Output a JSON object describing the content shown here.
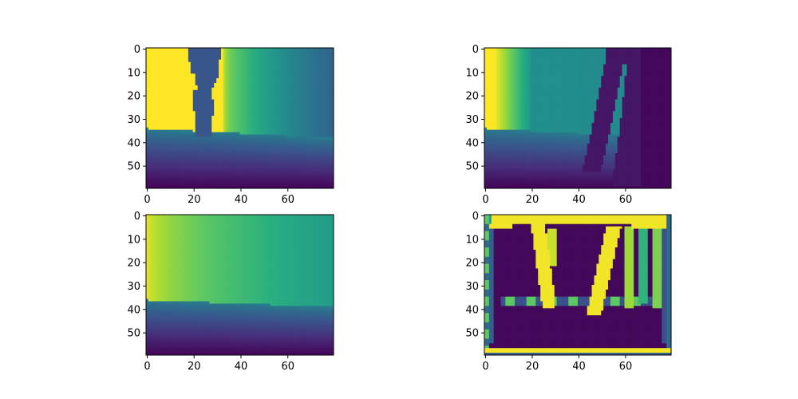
{
  "chart_data": [
    {
      "type": "heatmap",
      "name": "panel-top-left",
      "description": "depth image with pedestrian",
      "colormap": "viridis",
      "shape": [
        60,
        80
      ],
      "xticks": [
        0,
        20,
        40,
        60
      ],
      "yticks": [
        0,
        10,
        20,
        30,
        40,
        50
      ],
      "regions": {
        "horizon_row_left": 34,
        "horizon_row_right": 38,
        "left_bright_end_col": 17,
        "gradient_start_col": 33,
        "gradient_start_value": 0.88,
        "gradient_end_value": 0.32,
        "figure_value": 0.27,
        "figure_left_col_top": 17.5,
        "figure_left_col_bottom": 21,
        "figure_right_col_top": 31.5,
        "figure_right_col_bottom": 27,
        "figure_bottom_row": 37
      }
    },
    {
      "type": "heatmap",
      "name": "panel-top-right",
      "description": "depth image with pedestrian (shifted)",
      "colormap": "viridis",
      "shape": [
        60,
        80
      ],
      "xticks": [
        0,
        20,
        40,
        60
      ],
      "yticks": [
        0,
        10,
        20,
        30,
        40,
        50
      ],
      "regions": {
        "horizon_row_left": 34,
        "horizon_row_right": 38,
        "bright_end_col": 5,
        "gradient_start_value": 0.95,
        "gradient_mid_value": 0.5,
        "gradient_mid_col": 20,
        "figure_value": 0.06,
        "figure_start_col": 52
      }
    },
    {
      "type": "heatmap",
      "name": "panel-bottom-left",
      "description": "background depth image",
      "colormap": "viridis",
      "shape": [
        60,
        80
      ],
      "xticks": [
        0,
        20,
        40,
        60
      ],
      "yticks": [
        0,
        10,
        20,
        30,
        40,
        50
      ],
      "regions": {
        "horizon_row_left": 36,
        "horizon_row_right": 39,
        "gradient_start_value": 0.97,
        "gradient_end_value": 0.55
      }
    },
    {
      "type": "heatmap",
      "name": "panel-bottom-right",
      "description": "difference / mask image",
      "colormap": "viridis",
      "shape": [
        60,
        80
      ],
      "xticks": [
        0,
        20,
        40,
        60
      ],
      "yticks": [
        0,
        10,
        20,
        30,
        40,
        50
      ],
      "regions": {
        "background_value": 0.02,
        "bright_value": 0.98,
        "border_value": 0.75
      }
    }
  ]
}
